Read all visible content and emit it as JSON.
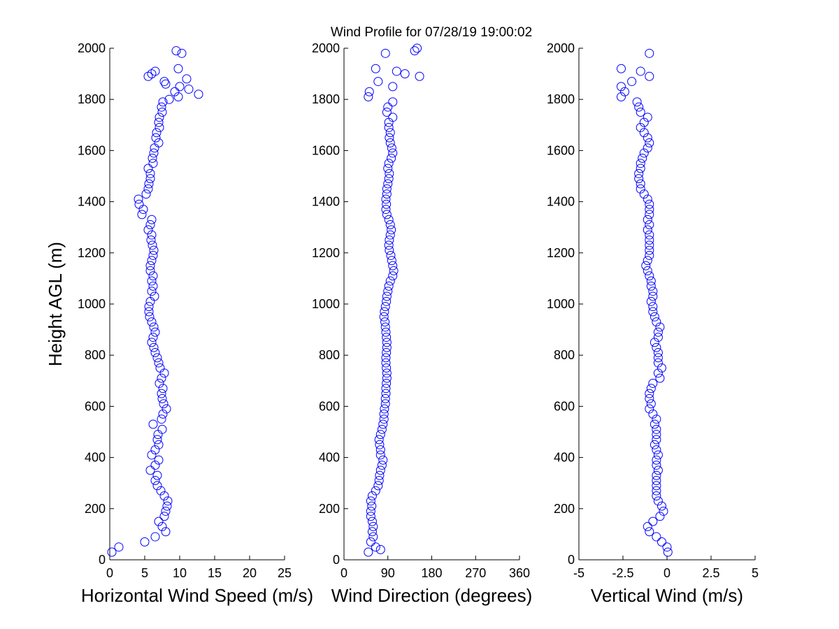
{
  "chart_data": [
    {
      "type": "scatter",
      "title": "Wind Profile for  07/28/19 19:00:02",
      "xlabel": "Horizontal Wind Speed (m/s)",
      "ylabel": "Height AGL (m)",
      "color": "#0000ff",
      "xlim": [
        0,
        25
      ],
      "xticks": [
        0,
        5,
        10,
        15,
        20,
        25
      ],
      "ylim": [
        0,
        2000
      ],
      "yticks": [
        0,
        200,
        400,
        600,
        800,
        1000,
        1200,
        1400,
        1600,
        1800,
        2000
      ],
      "x": [
        0.3,
        1.3,
        5,
        6.5,
        8,
        7.5,
        7,
        7.8,
        8,
        8.2,
        8.3,
        7.8,
        7.3,
        6.8,
        6.5,
        6.8,
        5.8,
        6.5,
        7,
        6,
        6.5,
        7,
        6.8,
        6.9,
        7.5,
        6.2,
        7.4,
        7.6,
        8.1,
        7.7,
        7.5,
        7.4,
        7.6,
        7.1,
        7.4,
        7.8,
        7.2,
        7,
        6.8,
        6.5,
        6.3,
        6,
        6.2,
        6.5,
        6.3,
        6,
        5.7,
        5.6,
        5.6,
        5.8,
        6.4,
        6,
        6.2,
        6,
        6.2,
        5.8,
        5.8,
        6,
        6.2,
        6.3,
        6.1,
        5.9,
        6,
        5.5,
        5.8,
        6,
        4.6,
        4.8,
        4.2,
        4.1,
        5.2,
        5.5,
        5.6,
        5.8,
        5.8,
        5.5,
        6.2,
        6.1,
        6.3,
        6.4,
        7,
        6.6,
        6.7,
        7.1,
        7,
        7.1,
        7.5,
        7.4,
        7.6,
        8.5,
        9.8,
        12.7,
        9.3,
        11.3,
        10,
        8,
        7.8,
        11,
        5.5,
        6,
        6.5,
        9.8,
        10.3,
        9.5
      ],
      "y": [
        30,
        50,
        70,
        90,
        110,
        130,
        150,
        170,
        190,
        210,
        230,
        250,
        270,
        290,
        310,
        330,
        350,
        370,
        390,
        410,
        430,
        450,
        470,
        490,
        510,
        530,
        550,
        570,
        590,
        610,
        630,
        650,
        670,
        690,
        710,
        730,
        750,
        770,
        790,
        810,
        830,
        850,
        870,
        890,
        910,
        930,
        950,
        970,
        990,
        1010,
        1030,
        1050,
        1070,
        1090,
        1110,
        1130,
        1150,
        1170,
        1190,
        1210,
        1230,
        1250,
        1270,
        1290,
        1310,
        1330,
        1350,
        1370,
        1390,
        1410,
        1430,
        1450,
        1470,
        1490,
        1510,
        1530,
        1550,
        1570,
        1590,
        1610,
        1630,
        1650,
        1670,
        1690,
        1710,
        1730,
        1750,
        1770,
        1790,
        1800,
        1810,
        1820,
        1830,
        1840,
        1850,
        1860,
        1870,
        1880,
        1890,
        1900,
        1910,
        1920,
        1980,
        1990
      ]
    },
    {
      "type": "scatter",
      "xlabel": "Wind Direction (degrees)",
      "color": "#0000ff",
      "xlim": [
        0,
        360
      ],
      "xticks": [
        0,
        90,
        180,
        270,
        360
      ],
      "ylim": [
        0,
        2000
      ],
      "yticks": [
        0,
        200,
        400,
        600,
        800,
        1000,
        1200,
        1400,
        1600,
        1800,
        2000
      ],
      "x": [
        50,
        75,
        65,
        55,
        60,
        58,
        60,
        58,
        55,
        55,
        57,
        55,
        58,
        65,
        70,
        72,
        73,
        75,
        78,
        80,
        75,
        75,
        73,
        72,
        75,
        78,
        80,
        82,
        82,
        83,
        85,
        85,
        86,
        86,
        87,
        88,
        88,
        87,
        86,
        86,
        87,
        88,
        88,
        87,
        86,
        85,
        84,
        82,
        83,
        85,
        87,
        88,
        90,
        92,
        95,
        100,
        102,
        100,
        98,
        96,
        93,
        92,
        93,
        95,
        97,
        95,
        92,
        88,
        86,
        87,
        86,
        88,
        88,
        90,
        92,
        93,
        90,
        92,
        97,
        100,
        98,
        95,
        93,
        95,
        92,
        92,
        100,
        88,
        90,
        100,
        50,
        52,
        100,
        70,
        155,
        108,
        65,
        125,
        85,
        145,
        150
      ],
      "y": [
        30,
        40,
        50,
        70,
        90,
        110,
        130,
        150,
        170,
        190,
        210,
        230,
        250,
        270,
        290,
        310,
        330,
        350,
        370,
        390,
        410,
        430,
        450,
        470,
        490,
        510,
        530,
        550,
        570,
        590,
        610,
        630,
        650,
        670,
        690,
        710,
        730,
        750,
        770,
        790,
        810,
        830,
        850,
        870,
        890,
        910,
        930,
        950,
        970,
        990,
        1010,
        1030,
        1050,
        1070,
        1090,
        1110,
        1130,
        1150,
        1170,
        1190,
        1210,
        1230,
        1250,
        1270,
        1290,
        1310,
        1330,
        1350,
        1370,
        1390,
        1410,
        1430,
        1450,
        1470,
        1490,
        1510,
        1530,
        1550,
        1570,
        1590,
        1610,
        1630,
        1650,
        1670,
        1690,
        1710,
        1730,
        1750,
        1770,
        1790,
        1810,
        1830,
        1850,
        1870,
        1890,
        1910,
        1920,
        1900,
        1980,
        1990,
        2000
      ]
    },
    {
      "type": "scatter",
      "xlabel": "Vertical Wind (m/s)",
      "color": "#0000ff",
      "xlim": [
        -5,
        5
      ],
      "xticks": [
        -5,
        -2.5,
        0,
        2.5,
        5
      ],
      "ylim": [
        0,
        2000
      ],
      "yticks": [
        0,
        200,
        400,
        600,
        800,
        1000,
        1200,
        1400,
        1600,
        1800,
        2000
      ],
      "x": [
        0.05,
        0,
        -0.3,
        -0.6,
        -1,
        -1.1,
        -0.8,
        -0.4,
        -0.2,
        -0.3,
        -0.5,
        -0.6,
        -0.6,
        -0.6,
        -0.6,
        -0.6,
        -0.5,
        -0.6,
        -0.6,
        -0.5,
        -0.6,
        -0.7,
        -0.6,
        -0.6,
        -0.6,
        -0.7,
        -0.6,
        -0.8,
        -1,
        -0.9,
        -1,
        -1,
        -0.9,
        -0.8,
        -0.4,
        -0.5,
        -0.3,
        -0.5,
        -0.5,
        -0.5,
        -0.6,
        -0.7,
        -0.5,
        -0.5,
        -0.4,
        -0.6,
        -0.7,
        -0.8,
        -0.8,
        -0.9,
        -0.8,
        -0.8,
        -0.9,
        -0.9,
        -1,
        -1.1,
        -1.2,
        -1.1,
        -1,
        -1,
        -1,
        -1,
        -1,
        -1.1,
        -1,
        -1.1,
        -1,
        -1,
        -1,
        -1.1,
        -1.3,
        -1.5,
        -1.5,
        -1.6,
        -1.6,
        -1.5,
        -1.5,
        -1.4,
        -1.3,
        -1.1,
        -1,
        -1.1,
        -1.3,
        -1.5,
        -1.3,
        -1.1,
        -1.5,
        -1.6,
        -1.7,
        -2.6,
        -2.4,
        -2.6,
        -2,
        -1,
        -1.5,
        -2.6,
        -1
      ],
      "y": [
        30,
        50,
        70,
        90,
        110,
        130,
        150,
        170,
        190,
        210,
        230,
        250,
        270,
        290,
        310,
        330,
        350,
        370,
        390,
        410,
        430,
        450,
        470,
        490,
        510,
        530,
        550,
        570,
        590,
        610,
        630,
        650,
        670,
        690,
        710,
        730,
        750,
        770,
        790,
        810,
        830,
        850,
        870,
        890,
        910,
        930,
        950,
        970,
        990,
        1010,
        1030,
        1050,
        1070,
        1090,
        1110,
        1130,
        1150,
        1170,
        1190,
        1210,
        1230,
        1250,
        1270,
        1290,
        1310,
        1330,
        1350,
        1370,
        1390,
        1410,
        1430,
        1450,
        1470,
        1490,
        1510,
        1530,
        1550,
        1570,
        1590,
        1610,
        1630,
        1650,
        1670,
        1690,
        1710,
        1730,
        1750,
        1770,
        1790,
        1810,
        1830,
        1850,
        1870,
        1890,
        1910,
        1920,
        1980
      ]
    }
  ]
}
